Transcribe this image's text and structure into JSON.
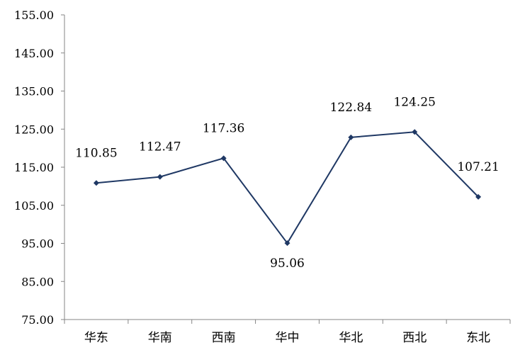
{
  "chart_data": {
    "type": "line",
    "title": "",
    "xlabel": "",
    "ylabel": "",
    "categories": [
      "华东",
      "华南",
      "西南",
      "华中",
      "华北",
      "西北",
      "东北"
    ],
    "series": [
      {
        "values": [
          110.85,
          112.47,
          117.36,
          95.06,
          122.84,
          124.25,
          107.21
        ]
      }
    ],
    "data_labels": [
      "110.85",
      "112.47",
      "117.36",
      "95.06",
      "122.84",
      "124.25",
      "107.21"
    ],
    "ylim": [
      75,
      155
    ],
    "y_ticks": [
      "75.00",
      "85.00",
      "95.00",
      "105.00",
      "115.00",
      "125.00",
      "135.00",
      "145.00",
      "155.00"
    ],
    "grid": false,
    "line_color": "#1f3864"
  }
}
